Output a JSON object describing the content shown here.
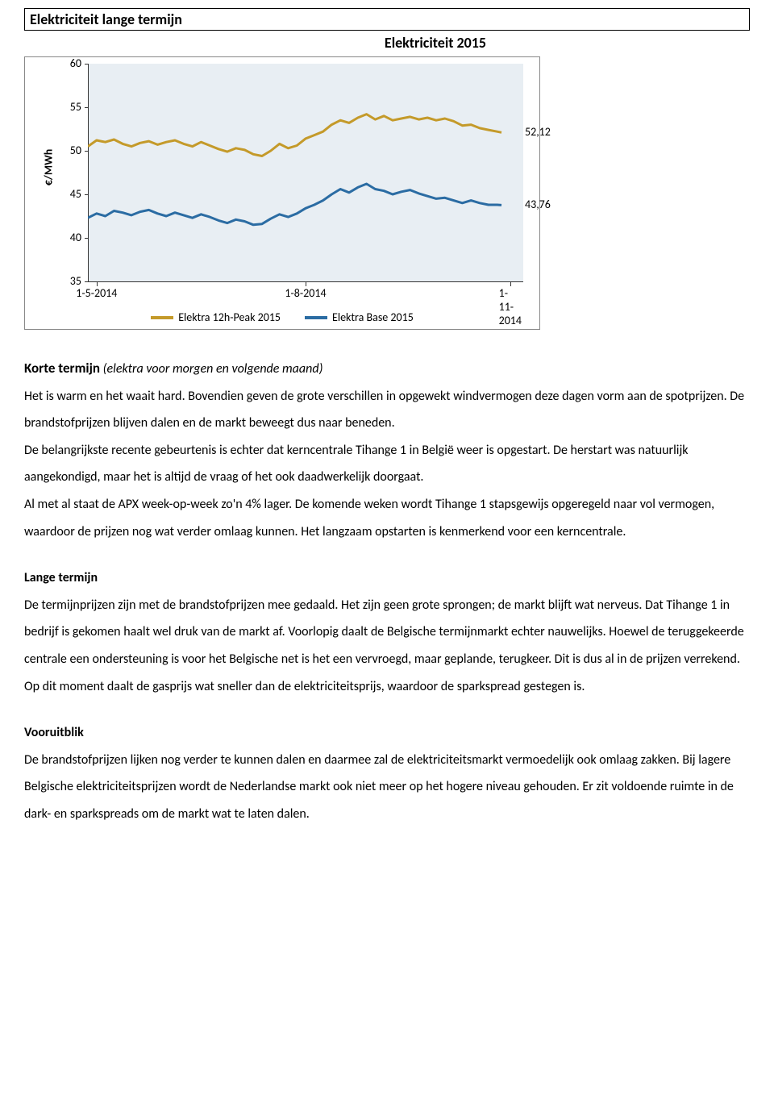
{
  "section_header": "Elektriciteit lange termijn",
  "chart": {
    "type": "line",
    "title": "Elektriciteit 2015",
    "ylabel": "€/MWh",
    "ylim": [
      35,
      60
    ],
    "yticks": [
      35,
      40,
      45,
      50,
      55,
      60
    ],
    "xticks": [
      "1-5-2014",
      "1-8-2014",
      "1-11-2014"
    ],
    "xtick_positions": [
      0.02,
      0.5,
      0.97
    ],
    "background_color": "#e8eef3",
    "axis_color": "#333333",
    "tick_fontsize": 14,
    "line_width": 3,
    "series": [
      {
        "name": "Elektra 12h-Peak 2015",
        "color": "#c49a2a",
        "end_label": "52,12",
        "end_value": 52.12,
        "points": [
          [
            0.0,
            50.5
          ],
          [
            0.02,
            51.2
          ],
          [
            0.04,
            51.0
          ],
          [
            0.06,
            51.3
          ],
          [
            0.08,
            50.8
          ],
          [
            0.1,
            50.5
          ],
          [
            0.12,
            50.9
          ],
          [
            0.14,
            51.1
          ],
          [
            0.16,
            50.7
          ],
          [
            0.18,
            51.0
          ],
          [
            0.2,
            51.2
          ],
          [
            0.22,
            50.8
          ],
          [
            0.24,
            50.5
          ],
          [
            0.26,
            51.0
          ],
          [
            0.28,
            50.6
          ],
          [
            0.3,
            50.2
          ],
          [
            0.32,
            49.9
          ],
          [
            0.34,
            50.3
          ],
          [
            0.36,
            50.1
          ],
          [
            0.38,
            49.6
          ],
          [
            0.4,
            49.4
          ],
          [
            0.42,
            50.0
          ],
          [
            0.44,
            50.8
          ],
          [
            0.46,
            50.3
          ],
          [
            0.48,
            50.6
          ],
          [
            0.5,
            51.4
          ],
          [
            0.52,
            51.8
          ],
          [
            0.54,
            52.2
          ],
          [
            0.56,
            53.0
          ],
          [
            0.58,
            53.5
          ],
          [
            0.6,
            53.2
          ],
          [
            0.62,
            53.8
          ],
          [
            0.64,
            54.2
          ],
          [
            0.66,
            53.6
          ],
          [
            0.68,
            54.0
          ],
          [
            0.7,
            53.5
          ],
          [
            0.72,
            53.7
          ],
          [
            0.74,
            53.9
          ],
          [
            0.76,
            53.6
          ],
          [
            0.78,
            53.8
          ],
          [
            0.8,
            53.5
          ],
          [
            0.82,
            53.7
          ],
          [
            0.84,
            53.4
          ],
          [
            0.86,
            52.9
          ],
          [
            0.88,
            53.0
          ],
          [
            0.9,
            52.6
          ],
          [
            0.92,
            52.4
          ],
          [
            0.94,
            52.2
          ],
          [
            0.95,
            52.1
          ]
        ]
      },
      {
        "name": "Elektra Base 2015",
        "color": "#2b6ca3",
        "end_label": "43,76",
        "end_value": 43.76,
        "points": [
          [
            0.0,
            42.3
          ],
          [
            0.02,
            42.8
          ],
          [
            0.04,
            42.5
          ],
          [
            0.06,
            43.1
          ],
          [
            0.08,
            42.9
          ],
          [
            0.1,
            42.6
          ],
          [
            0.12,
            43.0
          ],
          [
            0.14,
            43.2
          ],
          [
            0.16,
            42.8
          ],
          [
            0.18,
            42.5
          ],
          [
            0.2,
            42.9
          ],
          [
            0.22,
            42.6
          ],
          [
            0.24,
            42.3
          ],
          [
            0.26,
            42.7
          ],
          [
            0.28,
            42.4
          ],
          [
            0.3,
            42.0
          ],
          [
            0.32,
            41.7
          ],
          [
            0.34,
            42.1
          ],
          [
            0.36,
            41.9
          ],
          [
            0.38,
            41.5
          ],
          [
            0.4,
            41.6
          ],
          [
            0.42,
            42.2
          ],
          [
            0.44,
            42.7
          ],
          [
            0.46,
            42.4
          ],
          [
            0.48,
            42.8
          ],
          [
            0.5,
            43.4
          ],
          [
            0.52,
            43.8
          ],
          [
            0.54,
            44.3
          ],
          [
            0.56,
            45.0
          ],
          [
            0.58,
            45.6
          ],
          [
            0.6,
            45.2
          ],
          [
            0.62,
            45.8
          ],
          [
            0.64,
            46.2
          ],
          [
            0.66,
            45.6
          ],
          [
            0.68,
            45.4
          ],
          [
            0.7,
            45.0
          ],
          [
            0.72,
            45.3
          ],
          [
            0.74,
            45.5
          ],
          [
            0.76,
            45.1
          ],
          [
            0.78,
            44.8
          ],
          [
            0.8,
            44.5
          ],
          [
            0.82,
            44.6
          ],
          [
            0.84,
            44.3
          ],
          [
            0.86,
            44.0
          ],
          [
            0.88,
            44.3
          ],
          [
            0.9,
            44.0
          ],
          [
            0.92,
            43.8
          ],
          [
            0.94,
            43.8
          ],
          [
            0.95,
            43.76
          ]
        ]
      }
    ]
  },
  "sections": {
    "korte_heading": "Korte termijn",
    "korte_suffix": " (elektra voor morgen en volgende maand)",
    "korte_p1": "Het is warm en het waait hard. Bovendien geven de grote verschillen in opgewekt windvermogen deze dagen vorm aan de spotprijzen. De brandstofprijzen blijven dalen en de markt beweegt dus naar beneden.",
    "korte_p2": "De belangrijkste recente gebeurtenis is echter dat kerncentrale Tihange 1 in België weer is opgestart. De herstart was natuurlijk aangekondigd, maar het is altijd de vraag of het ook daadwerkelijk doorgaat.",
    "korte_p3": "Al met al staat de APX week-op-week zo'n 4% lager. De komende weken wordt Tihange 1 stapsgewijs opgeregeld naar vol vermogen, waardoor de prijzen nog wat verder omlaag kunnen. Het langzaam opstarten is kenmerkend voor een kerncentrale.",
    "lange_heading": "Lange termijn",
    "lange_p1": "De termijnprijzen zijn met de brandstofprijzen mee gedaald. Het zijn geen grote sprongen; de markt blijft wat nerveus. Dat Tihange 1 in bedrijf is gekomen haalt wel druk van de markt af. Voorlopig daalt de Belgische termijnmarkt echter nauwelijks. Hoewel de teruggekeerde centrale een ondersteuning is voor het Belgische net is het een vervroegd, maar geplande, terugkeer. Dit is dus al in de prijzen verrekend.",
    "lange_p2": "Op dit moment daalt de gasprijs wat sneller dan de elektriciteitsprijs, waardoor de sparkspread gestegen is.",
    "vooruit_heading": "Vooruitblik",
    "vooruit_p1": "De brandstofprijzen lijken nog verder te kunnen dalen en daarmee zal de elektriciteitsmarkt vermoedelijk ook omlaag zakken. Bij lagere Belgische elektriciteitsprijzen wordt de Nederlandse markt ook niet meer op het hogere niveau gehouden. Er zit voldoende ruimte in de dark- en sparkspreads om de markt wat te laten dalen."
  }
}
